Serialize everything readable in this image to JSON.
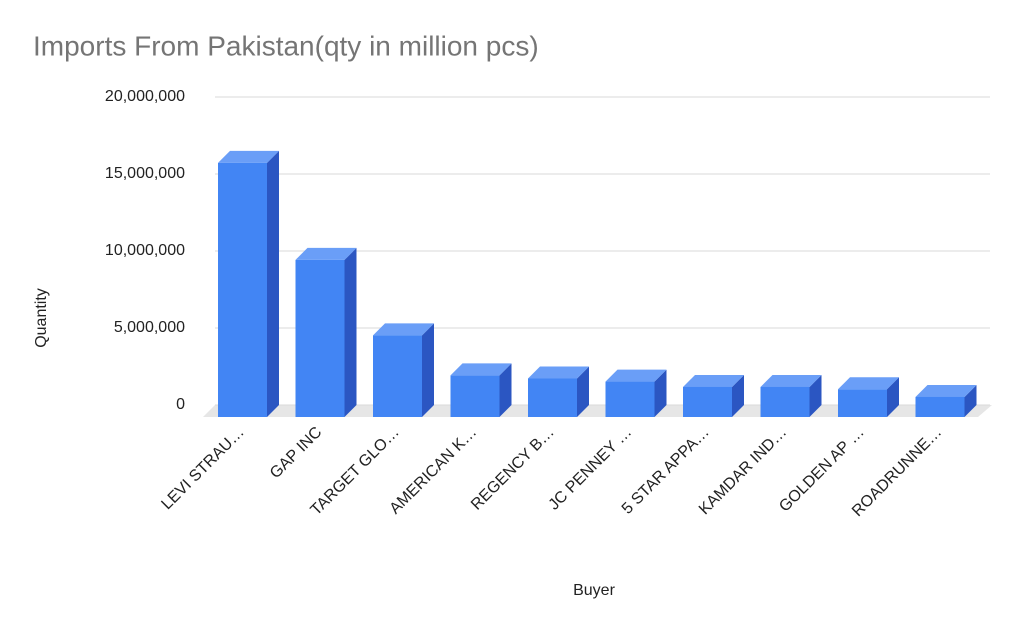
{
  "chart_data": {
    "type": "bar3d",
    "title": "Imports From Pakistan(qty in million pcs)",
    "x_label": "Buyer",
    "y_label": "Quantity",
    "categories": [
      "LEVI STRAU…",
      "GAP INC",
      "TARGET GLO…",
      "AMERICAN K…",
      "REGENCY B…",
      "JC PENNEY …",
      "5 STAR APPA…",
      "KAMDAR IND…",
      "GOLDEN AP …",
      "ROADRUNNE…"
    ],
    "values": [
      16500000,
      10200000,
      5300000,
      2700000,
      2500000,
      2300000,
      1950000,
      1950000,
      1800000,
      1300000
    ],
    "color": "#4285f4",
    "ylim": [
      0,
      20000000
    ],
    "yticks": [
      0,
      {
        "value": 5000000,
        "label": "5,000,000"
      },
      {
        "value": 10000000,
        "label": "10,000,000"
      },
      {
        "value": 15000000,
        "label": "15,000,000"
      },
      {
        "value": 20000000,
        "label": "20,000,000"
      }
    ],
    "grid": true
  }
}
